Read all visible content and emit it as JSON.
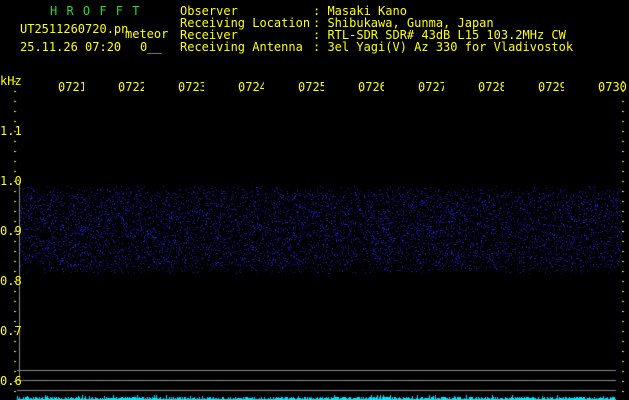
{
  "header": {
    "brand": "H R O F F T",
    "filename": "UT2511260720.pn",
    "mode": "meteor",
    "datetime": "25.11.26 07:20",
    "counter": "0__"
  },
  "info": [
    {
      "label": "Observer",
      "value": ": Masaki Kano"
    },
    {
      "label": "Receiving Location",
      "value": ": Shibukawa, Gunma, Japan"
    },
    {
      "label": "Receiver",
      "value": ": RTL-SDR SDR# 43dB L15 103.2MHz CW"
    },
    {
      "label": "Receiving Antenna",
      "value": ": 3el Yagi(V) Az 330 for Vladivostok"
    }
  ],
  "axis": {
    "unit": "kHz",
    "times": [
      "0721",
      "0722",
      "0723",
      "0724",
      "0725",
      "0726",
      "0727",
      "0728",
      "0729",
      "0730"
    ],
    "freqs": [
      "1.1",
      "1.0",
      "0.9",
      "0.8",
      "0.7",
      "0.6"
    ]
  },
  "colors": {
    "brand": "#22dd22",
    "text": "#ffff00",
    "signal": "#2020ff",
    "level": "#00e5ff",
    "grid": "#888888"
  }
}
